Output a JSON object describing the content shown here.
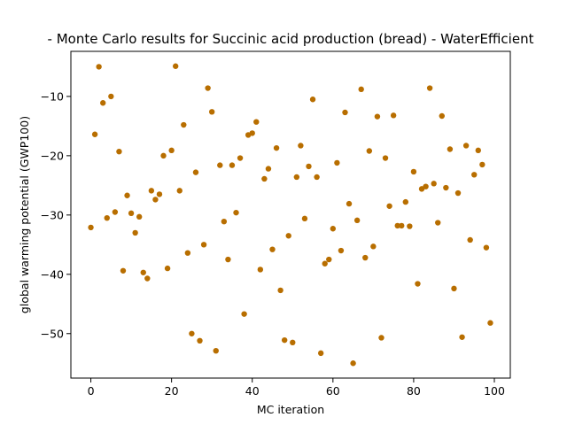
{
  "chart_data": {
    "type": "scatter",
    "title": " - Monte Carlo results for Succinic acid production (bread) - WaterEfficient",
    "xlabel": "MC iteration",
    "ylabel": "global warming potential (GWP100)",
    "xlim": [
      -4.95,
      103.95
    ],
    "ylim": [
      -57.5,
      -2.4
    ],
    "xticks": [
      0,
      20,
      40,
      60,
      80,
      100
    ],
    "yticks": [
      -50,
      -40,
      -30,
      -20,
      -10
    ],
    "grid": false,
    "legend": "none",
    "marker_color": "#b86e00",
    "series": [
      {
        "x": [
          0,
          1,
          2,
          3,
          4,
          5,
          6,
          7,
          8,
          9,
          10,
          11,
          12,
          13,
          14,
          15,
          16,
          17,
          18,
          19,
          20,
          21,
          22,
          23,
          24,
          25,
          26,
          27,
          28,
          29,
          30,
          31,
          32,
          33,
          34,
          35,
          36,
          37,
          38,
          39,
          40,
          41,
          42,
          43,
          44,
          45,
          46,
          47,
          48,
          49,
          50,
          51,
          52,
          53,
          54,
          55,
          56,
          57,
          58,
          59,
          60,
          61,
          62,
          63,
          64,
          65,
          66,
          67,
          68,
          69,
          70,
          71,
          72,
          73,
          74,
          75,
          76,
          77,
          78,
          79,
          80,
          81,
          82,
          83,
          84,
          85,
          86,
          87,
          88,
          89,
          90,
          91,
          92,
          93,
          94,
          95,
          96,
          97,
          98,
          99
        ],
        "y": [
          -32.1,
          -16.4,
          -5.0,
          -11.1,
          -30.5,
          -10.0,
          -29.5,
          -19.3,
          -39.4,
          -26.7,
          -29.7,
          -33.0,
          -30.3,
          -39.7,
          -40.7,
          -25.9,
          -27.4,
          -26.5,
          -20.0,
          -39.0,
          -19.1,
          -4.9,
          -25.9,
          -14.8,
          -36.4,
          -50.0,
          -22.8,
          -51.2,
          -35.0,
          -8.6,
          -12.6,
          -52.9,
          -21.6,
          -31.1,
          -37.5,
          -21.6,
          -29.6,
          -20.4,
          -46.7,
          -16.5,
          -16.2,
          -14.3,
          -39.2,
          -23.9,
          -22.2,
          -35.8,
          -18.7,
          -42.7,
          -51.1,
          -33.5,
          -51.5,
          -23.6,
          -18.3,
          -30.6,
          -21.8,
          -10.5,
          -23.6,
          -53.3,
          -38.2,
          -37.5,
          -32.3,
          -21.2,
          -36.0,
          -12.7,
          -28.1,
          -55.0,
          -30.9,
          -8.8,
          -37.2,
          -19.2,
          -35.3,
          -13.4,
          -50.7,
          -20.4,
          -28.5,
          -13.2,
          -31.8,
          -31.8,
          -27.8,
          -31.9,
          -22.7,
          -41.6,
          -25.6,
          -25.2,
          -8.6,
          -24.7,
          -31.3,
          -13.3,
          -25.4,
          -18.9,
          -42.4,
          -26.3,
          -50.6,
          -18.3,
          -34.2,
          -23.2,
          -19.1,
          -21.5,
          -35.5,
          -48.2
        ]
      }
    ]
  }
}
